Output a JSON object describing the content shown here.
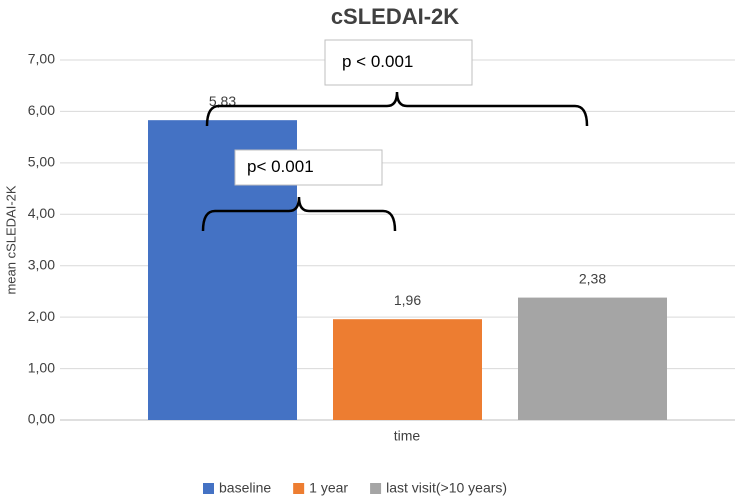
{
  "chart_data": {
    "type": "bar",
    "title": "cSLEDAI-2K",
    "x_label": "time",
    "y_label": "mean cSLEDAI-2K",
    "categories": [
      null
    ],
    "series": [
      {
        "name": "baseline",
        "color": "#4472c4",
        "values": [
          5.83
        ],
        "value_labels": [
          "5,83"
        ]
      },
      {
        "name": "1 year",
        "color": "#ed7d31",
        "values": [
          1.96
        ],
        "value_labels": [
          "1,96"
        ]
      },
      {
        "name": "last visit(>10 years)",
        "color": "#a5a5a5",
        "values": [
          2.38
        ],
        "value_labels": [
          "2,38"
        ]
      }
    ],
    "ylim": [
      0,
      7
    ],
    "yticks": [
      {
        "value": 0,
        "label": "0,00"
      },
      {
        "value": 1,
        "label": "1,00"
      },
      {
        "value": 2,
        "label": "2,00"
      },
      {
        "value": 3,
        "label": "3,00"
      },
      {
        "value": 4,
        "label": "4,00"
      },
      {
        "value": 5,
        "label": "5,00"
      },
      {
        "value": 6,
        "label": "6,00"
      },
      {
        "value": 7,
        "label": "7,00"
      }
    ],
    "grid": true,
    "legend": "bottom",
    "annotations": [
      {
        "text": "p < 0.001"
      },
      {
        "text": "p< 0.001"
      }
    ]
  }
}
